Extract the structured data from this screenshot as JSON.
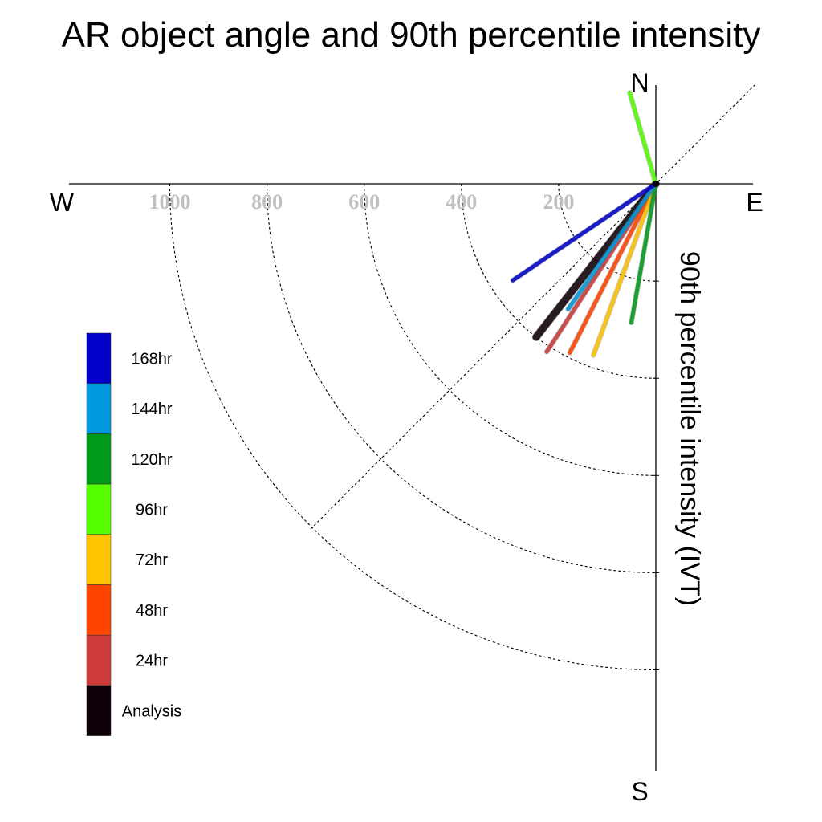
{
  "chart_data": {
    "type": "polar-vector",
    "title": "AR object angle and 90th percentile intensity",
    "ylabel": "90th percentile intensity (IVT)",
    "compass": {
      "north": "N",
      "south": "S",
      "east": "E",
      "west": "W"
    },
    "radial_ticks": [
      200,
      400,
      600,
      800,
      1000
    ],
    "radial_tick_labels": [
      "200",
      "400",
      "600",
      "800",
      "1000"
    ],
    "rmax": 1200,
    "angle_convention": "degrees clockwise from north",
    "series": [
      {
        "name": "168hr",
        "color": "#0000c8",
        "angle": 236,
        "intensity": 355
      },
      {
        "name": "144hr",
        "color": "#0099dd",
        "angle": 215,
        "intensity": 315
      },
      {
        "name": "120hr",
        "color": "#009a1a",
        "angle": 190,
        "intensity": 290
      },
      {
        "name": "96hr",
        "color": "#55ff00",
        "angle": 344,
        "intensity": 195
      },
      {
        "name": "72hr",
        "color": "#ffc400",
        "angle": 200,
        "intensity": 375
      },
      {
        "name": "48hr",
        "color": "#ff4400",
        "angle": 207,
        "intensity": 390
      },
      {
        "name": "24hr",
        "color": "#cc3a3a",
        "angle": 213,
        "intensity": 412
      },
      {
        "name": "Analysis",
        "color": "#0d0008",
        "angle": 218,
        "intensity": 400
      }
    ]
  }
}
